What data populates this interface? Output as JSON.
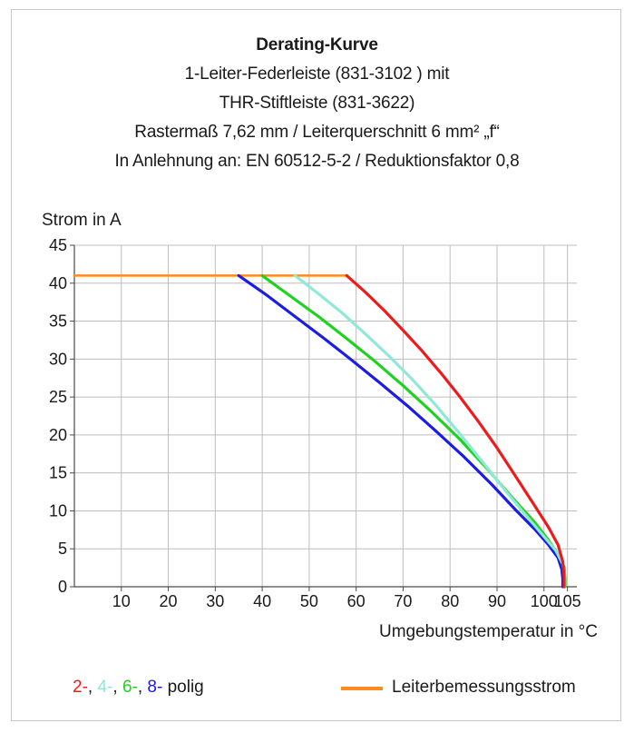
{
  "chart_data": {
    "type": "line",
    "title": "Derating-Kurve",
    "subtitle_lines": [
      "1-Leiter-Federleiste (831-3102 ) mit",
      "THR-Stiftleiste (831-3622)",
      "Rastermaß 7,62 mm / Leiterquerschnitt 6 mm² „f“",
      "In Anlehnung an: EN 60512-5-2 / Reduktionsfaktor 0,8"
    ],
    "ylabel": "Strom in A",
    "xlabel": "Umgebungstemperatur in °C",
    "xlim": [
      0,
      107
    ],
    "ylim": [
      0,
      45
    ],
    "xticks": [
      10,
      20,
      30,
      40,
      50,
      60,
      70,
      80,
      90,
      100,
      105
    ],
    "yticks": [
      0,
      5,
      10,
      15,
      20,
      25,
      30,
      35,
      40,
      45
    ],
    "grid": true,
    "series": [
      {
        "name": "2-",
        "color": "#e81d1d",
        "x": [
          58,
          62,
          66,
          70,
          74,
          78,
          82,
          86,
          90,
          94,
          98,
          101,
          103,
          104,
          104.3,
          104.3
        ],
        "y": [
          41,
          38.8,
          36.4,
          33.8,
          31.1,
          28.2,
          25.1,
          21.8,
          18.3,
          14.5,
          10.7,
          7.8,
          5.5,
          3.3,
          1.2,
          0
        ]
      },
      {
        "name": "4-",
        "color": "#8fe8d8",
        "x": [
          47,
          52,
          57,
          62,
          67,
          72,
          77,
          82,
          87,
          92,
          97,
          100,
          102.5,
          104,
          104.4,
          104.4
        ],
        "y": [
          41,
          38.6,
          36.1,
          33.3,
          30.4,
          27.3,
          23.9,
          20.2,
          16.4,
          12.5,
          8.8,
          6.6,
          4.8,
          3.0,
          1.2,
          0
        ]
      },
      {
        "name": "6-",
        "color": "#1fd21f",
        "x": [
          40,
          46,
          52,
          58,
          64,
          70,
          76,
          82,
          88,
          93,
          98,
          101,
          103,
          104.3,
          104.5,
          104.5
        ],
        "y": [
          41,
          38.3,
          35.6,
          32.7,
          29.7,
          26.5,
          23.1,
          19.5,
          15.5,
          11.9,
          8.5,
          6.1,
          4.3,
          2.6,
          1.0,
          0
        ]
      },
      {
        "name": "8-",
        "color": "#1d1de0",
        "x": [
          35,
          41,
          47,
          53,
          59,
          65,
          71,
          77,
          83,
          89,
          94,
          98,
          101,
          103,
          103.8,
          104,
          104
        ],
        "y": [
          41,
          38.4,
          35.6,
          32.8,
          29.9,
          26.9,
          23.8,
          20.5,
          17.1,
          13.4,
          10.1,
          7.6,
          5.5,
          3.8,
          2.3,
          1.0,
          0
        ]
      },
      {
        "name": "Leiterbemessungsstrom",
        "color": "#ff8a1e",
        "x": [
          0,
          58
        ],
        "y": [
          41,
          41
        ]
      }
    ]
  },
  "legend": {
    "series_prefix_1": "2-",
    "sep_1": ", ",
    "series_prefix_2": "4-",
    "sep_2": ", ",
    "series_prefix_3": "6-",
    "sep_3": ", ",
    "series_prefix_4": "8-",
    "suffix": " polig",
    "rated_current": "Leiterbemessungsstrom"
  }
}
